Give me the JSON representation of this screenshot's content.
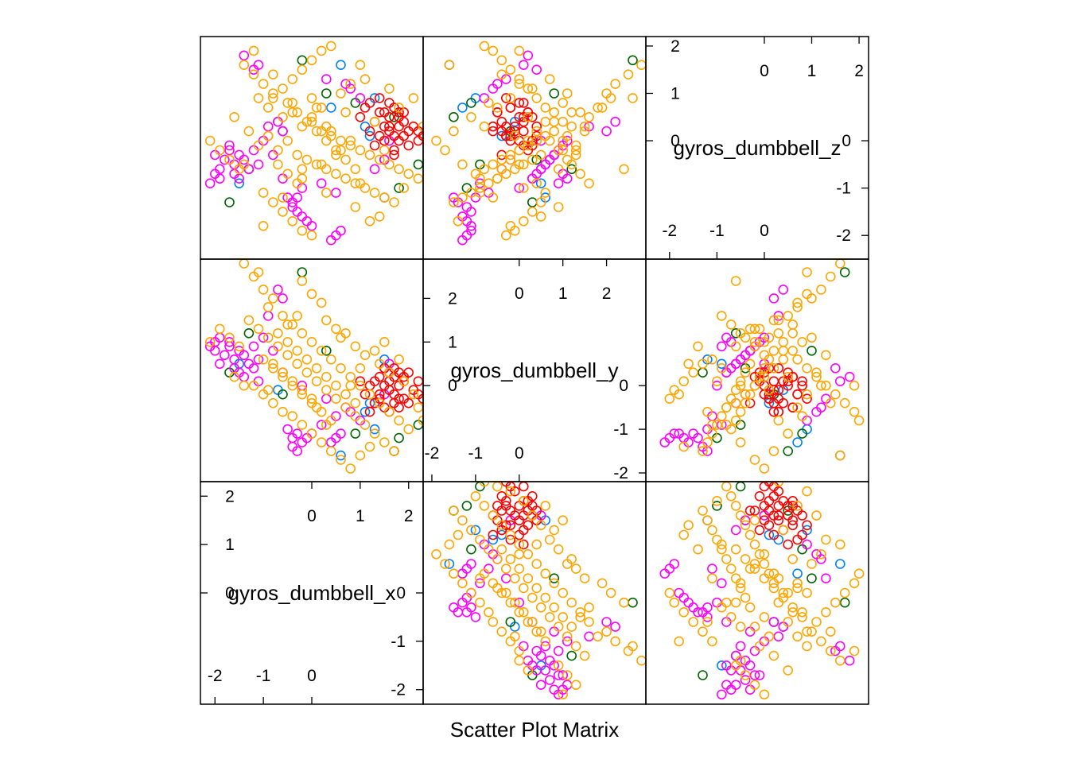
{
  "chart_data": {
    "type": "scatter",
    "title": "Scatter Plot Matrix",
    "variables": [
      "gyros_dumbbell_x",
      "gyros_dumbbell_y",
      "gyros_dumbbell_z"
    ],
    "panel_order_bottom_to_top": [
      "gyros_dumbbell_x",
      "gyros_dumbbell_y",
      "gyros_dumbbell_z"
    ],
    "axis_ranges": {
      "gyros_dumbbell_x": [
        -2.3,
        2.3
      ],
      "gyros_dumbbell_y": [
        -2.2,
        2.9
      ],
      "gyros_dumbbell_z": [
        -2.5,
        2.2
      ]
    },
    "diagonal_ticks": {
      "gyros_dumbbell_x": {
        "low_values": [
          -2,
          -1,
          0
        ],
        "high_values": [
          0,
          1,
          2
        ],
        "low_labels": [
          "-2",
          "-1",
          "0"
        ],
        "high_labels": [
          "0",
          "1",
          "2"
        ]
      },
      "gyros_dumbbell_y": {
        "low_values": [
          -2,
          -1,
          0
        ],
        "high_values": [
          0,
          1,
          2
        ],
        "low_labels": [
          "-2",
          "-1",
          "0"
        ],
        "high_labels": [
          "0",
          "1",
          "2"
        ]
      },
      "gyros_dumbbell_z": {
        "low_values": [
          -2,
          -1,
          0
        ],
        "high_values": [
          0,
          1,
          2
        ],
        "low_labels": [
          "-2",
          "-1",
          "0"
        ],
        "high_labels": [
          "0",
          "1",
          "2"
        ]
      }
    },
    "grid": false,
    "legend": "none",
    "marker": "open-circle",
    "colors": [
      "#0080ff",
      "#006400",
      "#ff00ff",
      "#ff0000",
      "#ffa500"
    ],
    "series": [
      {
        "color": "#0080ff",
        "points": [
          [
            1.1,
            -0.6,
            0.3
          ],
          [
            1.3,
            -1.0,
            0.9
          ],
          [
            -1.5,
            0.5,
            -0.9
          ],
          [
            0.4,
            -1.3,
            0.7
          ],
          [
            1.5,
            0.6,
            -1.2
          ],
          [
            -0.7,
            -0.1,
            0.4
          ],
          [
            0.6,
            -1.6,
            1.6
          ],
          [
            1.2,
            -0.4,
            0.1
          ]
        ]
      },
      {
        "color": "#006400",
        "points": [
          [
            -0.2,
            2.6,
            1.7
          ],
          [
            1.8,
            -1.2,
            -1.0
          ],
          [
            -0.6,
            -0.2,
            0.2
          ],
          [
            1.5,
            0.4,
            -0.4
          ],
          [
            2.2,
            -0.9,
            -0.5
          ],
          [
            -1.7,
            0.3,
            -1.3
          ],
          [
            0.9,
            -1.1,
            0.8
          ],
          [
            -1.3,
            1.2,
            -0.6
          ],
          [
            0.3,
            0.8,
            1.0
          ],
          [
            1.7,
            -1.5,
            0.5
          ]
        ]
      },
      {
        "color": "#ff00ff",
        "points": [
          [
            -2.0,
            0.8,
            -0.3
          ],
          [
            -1.8,
            0.7,
            -0.4
          ],
          [
            -1.7,
            0.9,
            -0.2
          ],
          [
            -1.6,
            0.6,
            -0.5
          ],
          [
            -1.5,
            0.8,
            -0.3
          ],
          [
            -1.9,
            0.5,
            -0.6
          ],
          [
            -1.4,
            0.7,
            -0.4
          ],
          [
            -1.2,
            0.9,
            -0.2
          ],
          [
            -1.1,
            0.6,
            -0.5
          ],
          [
            -1.6,
            0.4,
            -0.7
          ],
          [
            -1.7,
            1.0,
            -0.1
          ],
          [
            -1.3,
            0.5,
            -0.6
          ],
          [
            -1.5,
            0.3,
            -0.8
          ],
          [
            -1.0,
            1.1,
            0.0
          ],
          [
            -0.8,
            0.8,
            -0.3
          ],
          [
            -0.6,
            0.3,
            -0.8
          ],
          [
            -0.5,
            -1.0,
            -1.2
          ],
          [
            -0.4,
            -1.2,
            -1.4
          ],
          [
            -0.3,
            -1.1,
            -1.5
          ],
          [
            -0.2,
            -1.3,
            -1.6
          ],
          [
            -0.1,
            -1.2,
            -1.7
          ],
          [
            0.0,
            -1.1,
            -1.8
          ],
          [
            -0.4,
            -1.4,
            -1.3
          ],
          [
            -0.3,
            -1.5,
            -1.2
          ],
          [
            0.5,
            -1.2,
            -2.0
          ],
          [
            0.4,
            -1.3,
            -2.1
          ],
          [
            0.6,
            -1.1,
            -1.9
          ],
          [
            -2.1,
            0.9,
            -0.9
          ],
          [
            -2.0,
            1.0,
            -0.7
          ],
          [
            -1.9,
            1.1,
            -0.8
          ],
          [
            -1.2,
            0.4,
            1.5
          ],
          [
            -1.4,
            0.2,
            1.8
          ],
          [
            -1.1,
            0.1,
            1.6
          ],
          [
            0.3,
            -0.3,
            1.3
          ],
          [
            0.7,
            -0.5,
            1.2
          ],
          [
            1.0,
            -0.8,
            0.9
          ],
          [
            0.8,
            -0.6,
            1.1
          ],
          [
            1.3,
            -0.4,
            -0.6
          ],
          [
            1.5,
            -0.2,
            -0.4
          ],
          [
            -0.9,
            1.6,
            0.3
          ],
          [
            -0.6,
            2.0,
            0.2
          ],
          [
            -0.7,
            2.2,
            0.4
          ],
          [
            0.2,
            -0.9,
            -0.9
          ],
          [
            0.5,
            -0.7,
            -1.1
          ],
          [
            -0.2,
            0.0,
            -1.0
          ],
          [
            1.6,
            0.5,
            0.0
          ]
        ]
      },
      {
        "color": "#ff0000",
        "points": [
          [
            1.3,
            0.1,
            -0.1
          ],
          [
            1.4,
            -0.2,
            0.1
          ],
          [
            1.5,
            0.0,
            0.0
          ],
          [
            1.6,
            -0.1,
            0.2
          ],
          [
            1.7,
            0.2,
            -0.2
          ],
          [
            1.8,
            -0.3,
            0.3
          ],
          [
            1.9,
            0.1,
            0.4
          ],
          [
            2.0,
            -0.4,
            0.2
          ],
          [
            1.6,
            0.3,
            0.5
          ],
          [
            1.5,
            -0.5,
            0.6
          ],
          [
            1.7,
            -0.2,
            0.7
          ],
          [
            1.8,
            0.0,
            0.5
          ],
          [
            1.9,
            -0.3,
            0.1
          ],
          [
            2.1,
            -0.1,
            0.3
          ],
          [
            2.2,
            -0.2,
            0.0
          ],
          [
            2.2,
            0.1,
            0.2
          ],
          [
            1.4,
            0.2,
            0.6
          ],
          [
            1.3,
            -0.4,
            0.4
          ],
          [
            1.6,
            -0.6,
            0.3
          ],
          [
            1.7,
            0.4,
            0.1
          ],
          [
            1.8,
            -0.5,
            0.6
          ],
          [
            1.2,
            0.0,
            0.8
          ],
          [
            1.1,
            -0.2,
            0.7
          ],
          [
            1.0,
            0.1,
            0.5
          ],
          [
            2.3,
            -0.3,
            0.1
          ],
          [
            2.0,
            0.3,
            -0.1
          ],
          [
            1.5,
            0.4,
            0.3
          ],
          [
            1.9,
            0.2,
            0.6
          ],
          [
            1.4,
            -0.3,
            0.9
          ],
          [
            1.6,
            0.1,
            0.8
          ],
          [
            1.7,
            -0.4,
            -0.3
          ],
          [
            1.8,
            0.3,
            0.0
          ],
          [
            1.2,
            -0.6,
            0.2
          ]
        ]
      },
      {
        "color": "#ffa500",
        "points": [
          [
            -1.4,
            2.8,
            1.6
          ],
          [
            -1.2,
            2.5,
            1.4
          ],
          [
            -1.0,
            2.2,
            1.2
          ],
          [
            -0.8,
            2.0,
            1.0
          ],
          [
            -1.1,
            2.6,
            0.9
          ],
          [
            -0.9,
            1.8,
            0.7
          ],
          [
            -0.6,
            1.6,
            0.5
          ],
          [
            -0.4,
            1.4,
            0.6
          ],
          [
            -0.2,
            1.2,
            0.3
          ],
          [
            0.0,
            1.0,
            0.4
          ],
          [
            0.2,
            0.8,
            0.2
          ],
          [
            0.4,
            0.6,
            0.1
          ],
          [
            0.6,
            0.4,
            0.0
          ],
          [
            0.8,
            0.2,
            -0.1
          ],
          [
            1.0,
            0.0,
            -0.2
          ],
          [
            1.2,
            -0.2,
            -0.3
          ],
          [
            1.4,
            -0.4,
            -0.4
          ],
          [
            1.6,
            -0.6,
            -0.5
          ],
          [
            1.8,
            -0.8,
            -0.6
          ],
          [
            2.0,
            -1.0,
            -0.7
          ],
          [
            -1.3,
            1.5,
            0.2
          ],
          [
            -1.1,
            1.3,
            -0.1
          ],
          [
            -0.9,
            1.1,
            0.1
          ],
          [
            -0.7,
            0.9,
            -0.2
          ],
          [
            -0.5,
            0.7,
            0.0
          ],
          [
            -0.3,
            0.5,
            -0.3
          ],
          [
            -0.1,
            0.3,
            -0.4
          ],
          [
            0.1,
            0.1,
            -0.5
          ],
          [
            0.3,
            -0.1,
            -0.6
          ],
          [
            0.5,
            -0.3,
            -0.7
          ],
          [
            0.7,
            -0.5,
            -0.8
          ],
          [
            0.9,
            -0.7,
            -0.9
          ],
          [
            1.1,
            -0.9,
            -1.0
          ],
          [
            1.3,
            -1.1,
            -1.1
          ],
          [
            1.5,
            -1.3,
            -1.2
          ],
          [
            1.7,
            -1.5,
            -1.3
          ],
          [
            -0.8,
            0.4,
            0.9
          ],
          [
            -0.6,
            0.2,
            1.1
          ],
          [
            -0.4,
            0.0,
            1.3
          ],
          [
            -0.2,
            -0.2,
            1.5
          ],
          [
            0.0,
            -0.4,
            1.7
          ],
          [
            0.2,
            -0.6,
            1.9
          ],
          [
            0.4,
            -0.8,
            2.0
          ],
          [
            -1.0,
            0.6,
            -1.1
          ],
          [
            -0.8,
            0.5,
            -1.3
          ],
          [
            -0.6,
            0.3,
            -1.5
          ],
          [
            -0.4,
            0.1,
            -1.7
          ],
          [
            -0.2,
            -0.1,
            -1.9
          ],
          [
            0.0,
            -0.3,
            -2.0
          ],
          [
            -0.5,
            1.0,
            0.8
          ],
          [
            -0.3,
            0.8,
            0.6
          ],
          [
            -0.1,
            0.6,
            0.4
          ],
          [
            0.1,
            0.4,
            0.2
          ],
          [
            0.3,
            0.2,
            0.0
          ],
          [
            0.5,
            0.0,
            -0.2
          ],
          [
            0.7,
            -0.2,
            -0.4
          ],
          [
            0.9,
            -0.4,
            -0.6
          ],
          [
            -0.7,
            1.2,
            -0.5
          ],
          [
            -0.5,
            1.4,
            -0.7
          ],
          [
            -0.3,
            1.6,
            -0.9
          ],
          [
            0.2,
            1.9,
            0.7
          ],
          [
            0.6,
            1.1,
            1.0
          ],
          [
            0.9,
            0.9,
            -1.4
          ],
          [
            1.1,
            0.7,
            1.3
          ],
          [
            1.4,
            0.5,
            -1.6
          ],
          [
            1.6,
            0.3,
            1.1
          ],
          [
            1.9,
            0.1,
            -1.0
          ],
          [
            2.1,
            -0.2,
            0.9
          ],
          [
            2.2,
            -0.5,
            -0.8
          ],
          [
            -1.5,
            0.9,
            -0.6
          ],
          [
            -1.7,
            1.1,
            -0.4
          ],
          [
            -1.9,
            1.3,
            -0.2
          ],
          [
            -2.1,
            1.0,
            0.0
          ],
          [
            -0.4,
            -0.7,
            0.8
          ],
          [
            -0.2,
            -0.9,
            -0.8
          ],
          [
            0.0,
            -1.1,
            0.5
          ],
          [
            0.2,
            -1.3,
            -0.5
          ],
          [
            0.4,
            -1.5,
            0.2
          ],
          [
            0.6,
            -1.7,
            -0.2
          ],
          [
            0.8,
            -1.9,
            0.0
          ],
          [
            1.0,
            -1.6,
            1.6
          ],
          [
            1.2,
            -1.4,
            -1.7
          ],
          [
            -1.2,
            0.0,
            1.9
          ],
          [
            -1.0,
            -0.2,
            -1.8
          ],
          [
            -0.8,
            -0.4,
            1.4
          ],
          [
            -0.6,
            -0.6,
            -1.2
          ],
          [
            0.3,
            1.5,
            0.3
          ],
          [
            0.5,
            1.3,
            -0.3
          ],
          [
            0.7,
            1.2,
            0.6
          ],
          [
            -0.2,
            2.4,
            -0.6
          ],
          [
            0.0,
            2.1,
            0.9
          ],
          [
            -1.6,
            0.2,
            0.5
          ],
          [
            -1.4,
            0.0,
            -0.5
          ],
          [
            1.3,
            0.8,
            0.4
          ],
          [
            1.5,
            1.0,
            -0.2
          ],
          [
            1.8,
            0.6,
            0.7
          ],
          [
            2.3,
            -0.8,
            0.3
          ],
          [
            -0.9,
            -0.1,
            0.1
          ],
          [
            0.1,
            -0.5,
            0.7
          ],
          [
            0.3,
            -0.9,
            -1.1
          ],
          [
            0.8,
            0.0,
            1.2
          ],
          [
            1.0,
            0.4,
            -0.9
          ]
        ]
      }
    ]
  }
}
